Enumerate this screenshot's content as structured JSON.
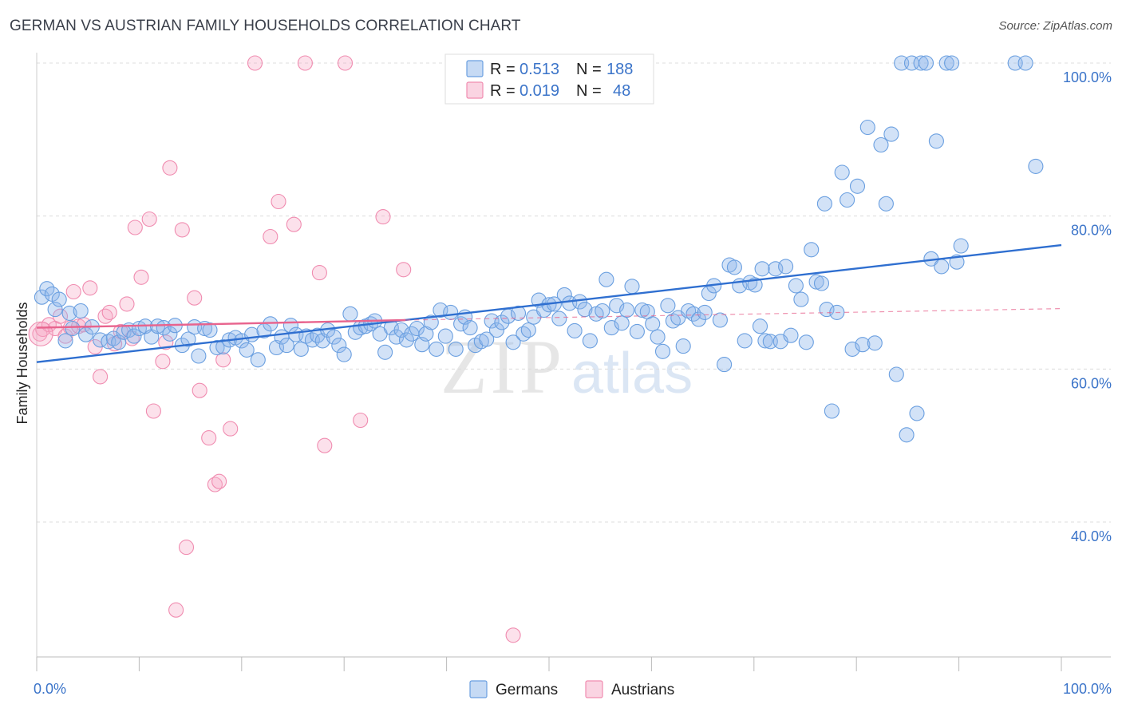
{
  "title": "GERMAN VS AUSTRIAN FAMILY HOUSEHOLDS CORRELATION CHART",
  "source": "Source: ZipAtlas.com",
  "colors": {
    "blue": "#6a9fe0",
    "blue_fill": "rgba(142,182,234,0.40)",
    "blue_line": "#2f6fd0",
    "pink": "#f08cb0",
    "pink_fill": "rgba(246,170,198,0.35)",
    "pink_line": "#e8648e",
    "grid": "#dcdcdc",
    "accent": "#3b74c9"
  },
  "legend": {
    "rows": [
      {
        "r_label": "R =",
        "r_value": "0.513",
        "n_label": "N =",
        "n_value": "188"
      },
      {
        "r_label": "R =",
        "r_value": "0.019",
        "n_label": "N =",
        "n_value": "48"
      }
    ]
  },
  "watermark": {
    "zip": "ZIP",
    "atlas": "atlas"
  },
  "chart_data": {
    "type": "scatter",
    "title": "GERMAN VS AUSTRIAN FAMILY HOUSEHOLDS CORRELATION CHART",
    "xlabel": "",
    "ylabel": "Family Households",
    "xlim": [
      0,
      100
    ],
    "ylim": [
      20,
      101
    ],
    "x_tick_labels": [
      "0.0%",
      "100.0%"
    ],
    "y_ticks": [
      40,
      60,
      80,
      100
    ],
    "y_tick_labels": [
      "40.0%",
      "60.0%",
      "80.0%",
      "100.0%"
    ],
    "legend_position": "bottom-center",
    "series": [
      {
        "name": "Germans",
        "color": "#6a9fe0",
        "R": 0.513,
        "N": 188,
        "trend": {
          "x": [
            0,
            100
          ],
          "y": [
            60.9,
            76.2
          ]
        },
        "points": [
          [
            0.5,
            69.4
          ],
          [
            1,
            70.5
          ],
          [
            1.5,
            69.8
          ],
          [
            1.8,
            67.8
          ],
          [
            2.2,
            69.1
          ],
          [
            2.8,
            63.7
          ],
          [
            3.2,
            67.3
          ],
          [
            3.5,
            65.3
          ],
          [
            4.3,
            67.6
          ],
          [
            4.8,
            64.5
          ],
          [
            5.4,
            65.5
          ],
          [
            6.2,
            63.8
          ],
          [
            7,
            63.6
          ],
          [
            7.5,
            64.0
          ],
          [
            8,
            63.5
          ],
          [
            8.5,
            64.8
          ],
          [
            9,
            65.1
          ],
          [
            9.5,
            64.3
          ],
          [
            10,
            65.3
          ],
          [
            10.6,
            65.6
          ],
          [
            11.2,
            64.2
          ],
          [
            11.8,
            65.6
          ],
          [
            12.4,
            65.4
          ],
          [
            13,
            64.6
          ],
          [
            13.5,
            65.7
          ],
          [
            14.2,
            63.1
          ],
          [
            14.8,
            63.9
          ],
          [
            15.4,
            65.5
          ],
          [
            15.8,
            61.7
          ],
          [
            16.4,
            65.3
          ],
          [
            16.9,
            65.1
          ],
          [
            17.6,
            62.8
          ],
          [
            18.2,
            62.9
          ],
          [
            18.8,
            63.8
          ],
          [
            19.4,
            64.1
          ],
          [
            20,
            63.7
          ],
          [
            20.5,
            62.5
          ],
          [
            21,
            64.5
          ],
          [
            21.6,
            61.2
          ],
          [
            22.2,
            65.0
          ],
          [
            22.8,
            65.9
          ],
          [
            23.4,
            62.8
          ],
          [
            23.9,
            64.2
          ],
          [
            24.4,
            63.1
          ],
          [
            24.8,
            65.7
          ],
          [
            25.3,
            64.5
          ],
          [
            25.8,
            62.6
          ],
          [
            26.3,
            64.3
          ],
          [
            26.9,
            63.8
          ],
          [
            27.4,
            64.4
          ],
          [
            27.9,
            63.7
          ],
          [
            28.4,
            65.1
          ],
          [
            29,
            64.2
          ],
          [
            29.5,
            63.1
          ],
          [
            30,
            61.9
          ],
          [
            30.6,
            67.2
          ],
          [
            31.1,
            64.8
          ],
          [
            31.6,
            65.4
          ],
          [
            32.1,
            65.6
          ],
          [
            32.6,
            65.9
          ],
          [
            33,
            66.3
          ],
          [
            33.5,
            64.6
          ],
          [
            34,
            62.2
          ],
          [
            34.6,
            65.4
          ],
          [
            35.1,
            64.2
          ],
          [
            35.6,
            65.1
          ],
          [
            36.1,
            63.8
          ],
          [
            36.6,
            64.6
          ],
          [
            37.1,
            65.3
          ],
          [
            37.6,
            63.2
          ],
          [
            38,
            64.6
          ],
          [
            38.5,
            66.1
          ],
          [
            39,
            62.6
          ],
          [
            39.4,
            67.7
          ],
          [
            39.9,
            64.3
          ],
          [
            40.4,
            67.4
          ],
          [
            40.9,
            62.6
          ],
          [
            41.4,
            65.9
          ],
          [
            41.8,
            66.8
          ],
          [
            42.3,
            65.4
          ],
          [
            42.8,
            63.1
          ],
          [
            43.4,
            63.6
          ],
          [
            43.9,
            63.9
          ],
          [
            44.4,
            66.3
          ],
          [
            44.9,
            65.1
          ],
          [
            45.4,
            66.1
          ],
          [
            46,
            66.9
          ],
          [
            46.5,
            63.5
          ],
          [
            47,
            67.3
          ],
          [
            47.5,
            64.6
          ],
          [
            48,
            65.1
          ],
          [
            48.5,
            66.8
          ],
          [
            49,
            69.0
          ],
          [
            49.5,
            67.7
          ],
          [
            50,
            68.4
          ],
          [
            50.5,
            68.5
          ],
          [
            51,
            66.6
          ],
          [
            51.5,
            69.7
          ],
          [
            52,
            68.6
          ],
          [
            52.5,
            65.0
          ],
          [
            53,
            68.8
          ],
          [
            53.5,
            67.8
          ],
          [
            54,
            63.7
          ],
          [
            54.6,
            67.2
          ],
          [
            55.2,
            67.6
          ],
          [
            55.6,
            71.7
          ],
          [
            56.1,
            65.4
          ],
          [
            56.6,
            68.3
          ],
          [
            57.1,
            66.0
          ],
          [
            57.6,
            67.7
          ],
          [
            58.1,
            70.8
          ],
          [
            58.6,
            64.9
          ],
          [
            59.1,
            67.7
          ],
          [
            59.6,
            67.5
          ],
          [
            60.1,
            65.9
          ],
          [
            60.6,
            64.2
          ],
          [
            61.1,
            62.3
          ],
          [
            61.6,
            68.3
          ],
          [
            62.1,
            66.3
          ],
          [
            62.6,
            66.7
          ],
          [
            63.1,
            63.0
          ],
          [
            63.6,
            67.6
          ],
          [
            64.1,
            67.2
          ],
          [
            64.6,
            66.5
          ],
          [
            65.2,
            67.4
          ],
          [
            65.6,
            69.9
          ],
          [
            66.1,
            70.9
          ],
          [
            66.7,
            66.4
          ],
          [
            67.1,
            60.6
          ],
          [
            67.6,
            73.6
          ],
          [
            68.1,
            73.3
          ],
          [
            68.6,
            70.9
          ],
          [
            69.1,
            63.7
          ],
          [
            69.6,
            71.3
          ],
          [
            70.1,
            71.0
          ],
          [
            70.6,
            65.6
          ],
          [
            71.1,
            63.7
          ],
          [
            71.6,
            63.6
          ],
          [
            72.1,
            73.1
          ],
          [
            72.6,
            63.6
          ],
          [
            73.1,
            73.4
          ],
          [
            73.6,
            64.4
          ],
          [
            74.1,
            70.9
          ],
          [
            74.6,
            69.1
          ],
          [
            75.1,
            63.5
          ],
          [
            75.6,
            75.6
          ],
          [
            76.1,
            71.4
          ],
          [
            76.6,
            71.2
          ],
          [
            77.1,
            67.8
          ],
          [
            77.6,
            54.5
          ],
          [
            78.1,
            67.4
          ],
          [
            78.6,
            85.7
          ],
          [
            79.1,
            82.1
          ],
          [
            79.6,
            62.6
          ],
          [
            80.1,
            83.9
          ],
          [
            80.6,
            63.2
          ],
          [
            81.1,
            91.6
          ],
          [
            81.8,
            63.4
          ],
          [
            82.4,
            89.3
          ],
          [
            82.9,
            81.6
          ],
          [
            83.4,
            90.7
          ],
          [
            83.9,
            59.3
          ],
          [
            84.4,
            100
          ],
          [
            84.9,
            51.4
          ],
          [
            85.4,
            100
          ],
          [
            85.9,
            54.2
          ],
          [
            86.3,
            100
          ],
          [
            86.8,
            100
          ],
          [
            87.3,
            74.4
          ],
          [
            87.8,
            89.8
          ],
          [
            88.3,
            73.4
          ],
          [
            88.8,
            100
          ],
          [
            89.3,
            100
          ],
          [
            89.8,
            74.0
          ],
          [
            90.2,
            76.1
          ],
          [
            95.5,
            100
          ],
          [
            96.5,
            100
          ],
          [
            97.5,
            86.5
          ],
          [
            76.9,
            81.6
          ],
          [
            70.8,
            73.1
          ]
        ]
      },
      {
        "name": "Austrians",
        "color": "#f08cb0",
        "R": 0.019,
        "N": 48,
        "trend_solid": {
          "x": [
            0,
            36
          ],
          "y": [
            65.4,
            66.4
          ]
        },
        "trend_dashed": {
          "x": [
            36,
            100
          ],
          "y": [
            66.4,
            67.9
          ]
        },
        "points": [
          [
            0.3,
            64.6
          ],
          [
            0.6,
            65.2
          ],
          [
            1.2,
            65.8
          ],
          [
            1.8,
            65.3
          ],
          [
            2.3,
            66.9
          ],
          [
            2.8,
            64.3
          ],
          [
            3.3,
            65.4
          ],
          [
            3.6,
            70.1
          ],
          [
            4.1,
            65.6
          ],
          [
            4.6,
            65.8
          ],
          [
            5.2,
            70.6
          ],
          [
            5.7,
            62.9
          ],
          [
            6.2,
            59.0
          ],
          [
            6.7,
            66.9
          ],
          [
            7.1,
            67.4
          ],
          [
            7.6,
            63.3
          ],
          [
            8.2,
            64.9
          ],
          [
            8.8,
            68.5
          ],
          [
            9.3,
            64.0
          ],
          [
            9.6,
            78.5
          ],
          [
            10.2,
            72.0
          ],
          [
            11.0,
            79.6
          ],
          [
            11.4,
            54.5
          ],
          [
            12.3,
            61.0
          ],
          [
            12.6,
            63.5
          ],
          [
            13.0,
            86.3
          ],
          [
            13.6,
            28.5
          ],
          [
            14.2,
            78.2
          ],
          [
            14.6,
            36.7
          ],
          [
            15.4,
            69.3
          ],
          [
            15.9,
            57.2
          ],
          [
            16.8,
            51.0
          ],
          [
            17.4,
            44.9
          ],
          [
            17.8,
            45.3
          ],
          [
            18.2,
            61.2
          ],
          [
            18.9,
            52.2
          ],
          [
            21.3,
            100
          ],
          [
            22.8,
            77.3
          ],
          [
            23.6,
            81.9
          ],
          [
            25.1,
            78.9
          ],
          [
            26.2,
            100
          ],
          [
            27.6,
            72.6
          ],
          [
            28.1,
            50.0
          ],
          [
            30.1,
            100
          ],
          [
            31.6,
            53.3
          ],
          [
            33.8,
            79.9
          ],
          [
            35.8,
            73.0
          ],
          [
            46.5,
            25.2
          ]
        ]
      }
    ]
  }
}
